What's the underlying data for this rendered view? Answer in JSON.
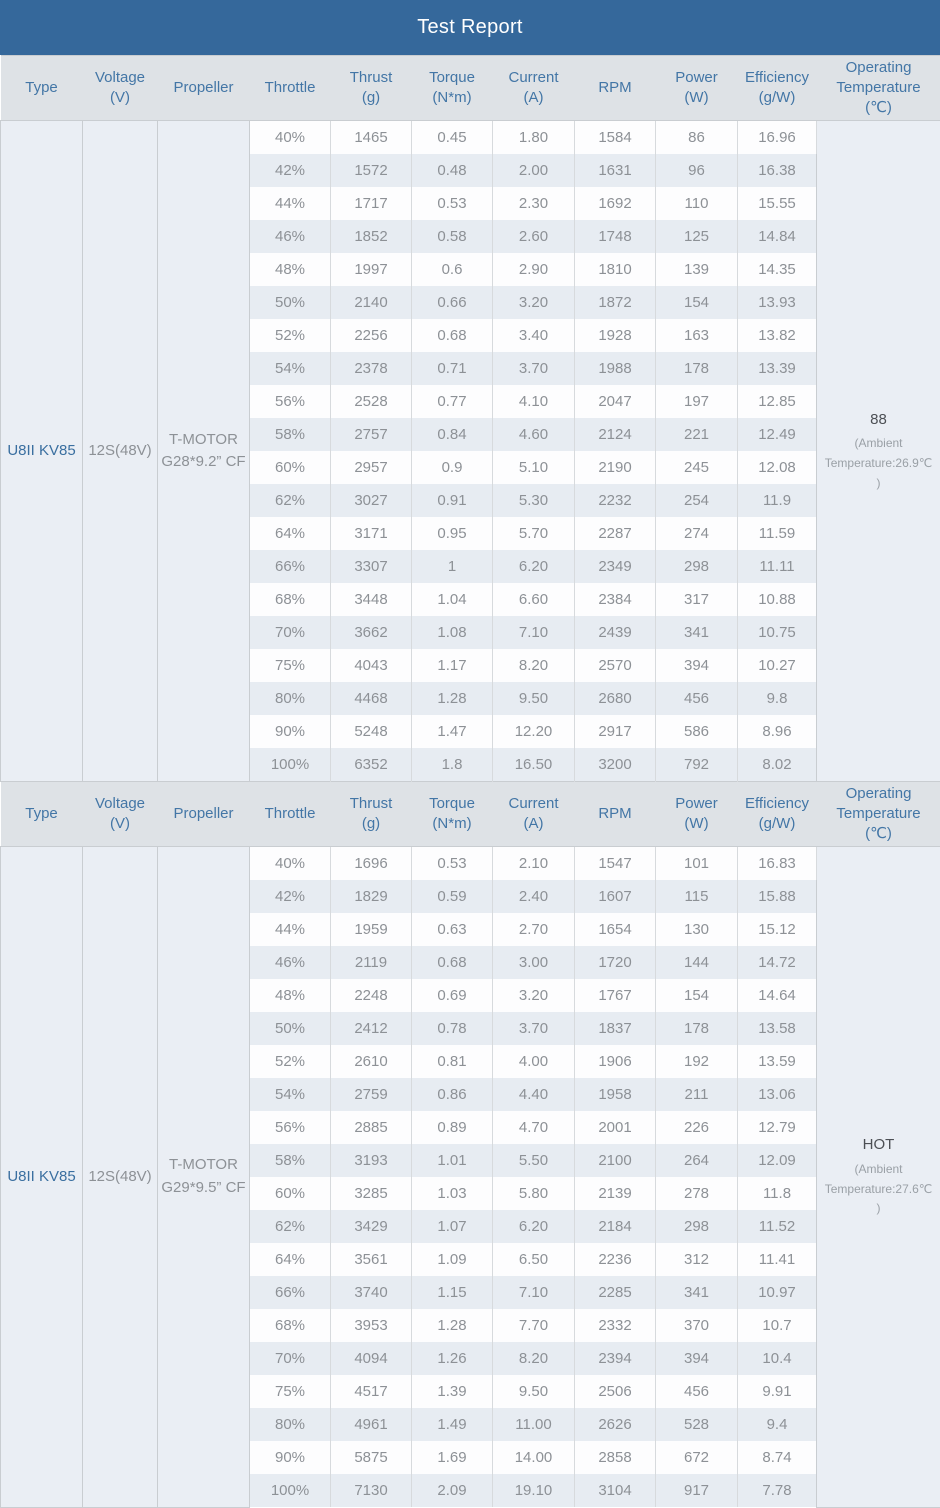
{
  "title": "Test Report",
  "columns": [
    {
      "id": "type",
      "label": "Type"
    },
    {
      "id": "voltage",
      "label": "Voltage\n(V)"
    },
    {
      "id": "propeller",
      "label": "Propeller"
    },
    {
      "id": "throttle",
      "label": "Throttle"
    },
    {
      "id": "thrust",
      "label": "Thrust\n(g)"
    },
    {
      "id": "torque",
      "label": "Torque\n(N*m)"
    },
    {
      "id": "current",
      "label": "Current\n(A)"
    },
    {
      "id": "rpm",
      "label": "RPM"
    },
    {
      "id": "power",
      "label": "Power\n(W)"
    },
    {
      "id": "efficiency",
      "label": "Efficiency\n(g/W)"
    },
    {
      "id": "operating-temperature",
      "label": "Operating\nTemperature\n(℃)"
    }
  ],
  "sections": [
    {
      "type": "U8II KV85",
      "voltage": "12S(48V)",
      "propeller": "T-MOTOR\nG28*9.2” CF",
      "temperature": {
        "value": "88",
        "note": "(Ambient\nTemperature:26.9℃\n)"
      },
      "rows": [
        [
          "40%",
          "1465",
          "0.45",
          "1.80",
          "1584",
          "86",
          "16.96"
        ],
        [
          "42%",
          "1572",
          "0.48",
          "2.00",
          "1631",
          "96",
          "16.38"
        ],
        [
          "44%",
          "1717",
          "0.53",
          "2.30",
          "1692",
          "110",
          "15.55"
        ],
        [
          "46%",
          "1852",
          "0.58",
          "2.60",
          "1748",
          "125",
          "14.84"
        ],
        [
          "48%",
          "1997",
          "0.6",
          "2.90",
          "1810",
          "139",
          "14.35"
        ],
        [
          "50%",
          "2140",
          "0.66",
          "3.20",
          "1872",
          "154",
          "13.93"
        ],
        [
          "52%",
          "2256",
          "0.68",
          "3.40",
          "1928",
          "163",
          "13.82"
        ],
        [
          "54%",
          "2378",
          "0.71",
          "3.70",
          "1988",
          "178",
          "13.39"
        ],
        [
          "56%",
          "2528",
          "0.77",
          "4.10",
          "2047",
          "197",
          "12.85"
        ],
        [
          "58%",
          "2757",
          "0.84",
          "4.60",
          "2124",
          "221",
          "12.49"
        ],
        [
          "60%",
          "2957",
          "0.9",
          "5.10",
          "2190",
          "245",
          "12.08"
        ],
        [
          "62%",
          "3027",
          "0.91",
          "5.30",
          "2232",
          "254",
          "11.9"
        ],
        [
          "64%",
          "3171",
          "0.95",
          "5.70",
          "2287",
          "274",
          "11.59"
        ],
        [
          "66%",
          "3307",
          "1",
          "6.20",
          "2349",
          "298",
          "11.11"
        ],
        [
          "68%",
          "3448",
          "1.04",
          "6.60",
          "2384",
          "317",
          "10.88"
        ],
        [
          "70%",
          "3662",
          "1.08",
          "7.10",
          "2439",
          "341",
          "10.75"
        ],
        [
          "75%",
          "4043",
          "1.17",
          "8.20",
          "2570",
          "394",
          "10.27"
        ],
        [
          "80%",
          "4468",
          "1.28",
          "9.50",
          "2680",
          "456",
          "9.8"
        ],
        [
          "90%",
          "5248",
          "1.47",
          "12.20",
          "2917",
          "586",
          "8.96"
        ],
        [
          "100%",
          "6352",
          "1.8",
          "16.50",
          "3200",
          "792",
          "8.02"
        ]
      ]
    },
    {
      "type": "U8II KV85",
      "voltage": "12S(48V)",
      "propeller": "T-MOTOR\nG29*9.5” CF",
      "temperature": {
        "value": "HOT",
        "note": "(Ambient\nTemperature:27.6℃\n)"
      },
      "rows": [
        [
          "40%",
          "1696",
          "0.53",
          "2.10",
          "1547",
          "101",
          "16.83"
        ],
        [
          "42%",
          "1829",
          "0.59",
          "2.40",
          "1607",
          "115",
          "15.88"
        ],
        [
          "44%",
          "1959",
          "0.63",
          "2.70",
          "1654",
          "130",
          "15.12"
        ],
        [
          "46%",
          "2119",
          "0.68",
          "3.00",
          "1720",
          "144",
          "14.72"
        ],
        [
          "48%",
          "2248",
          "0.69",
          "3.20",
          "1767",
          "154",
          "14.64"
        ],
        [
          "50%",
          "2412",
          "0.78",
          "3.70",
          "1837",
          "178",
          "13.58"
        ],
        [
          "52%",
          "2610",
          "0.81",
          "4.00",
          "1906",
          "192",
          "13.59"
        ],
        [
          "54%",
          "2759",
          "0.86",
          "4.40",
          "1958",
          "211",
          "13.06"
        ],
        [
          "56%",
          "2885",
          "0.89",
          "4.70",
          "2001",
          "226",
          "12.79"
        ],
        [
          "58%",
          "3193",
          "1.01",
          "5.50",
          "2100",
          "264",
          "12.09"
        ],
        [
          "60%",
          "3285",
          "1.03",
          "5.80",
          "2139",
          "278",
          "11.8"
        ],
        [
          "62%",
          "3429",
          "1.07",
          "6.20",
          "2184",
          "298",
          "11.52"
        ],
        [
          "64%",
          "3561",
          "1.09",
          "6.50",
          "2236",
          "312",
          "11.41"
        ],
        [
          "66%",
          "3740",
          "1.15",
          "7.10",
          "2285",
          "341",
          "10.97"
        ],
        [
          "68%",
          "3953",
          "1.28",
          "7.70",
          "2332",
          "370",
          "10.7"
        ],
        [
          "70%",
          "4094",
          "1.26",
          "8.20",
          "2394",
          "394",
          "10.4"
        ],
        [
          "75%",
          "4517",
          "1.39",
          "9.50",
          "2506",
          "456",
          "9.91"
        ],
        [
          "80%",
          "4961",
          "1.49",
          "11.00",
          "2626",
          "528",
          "9.4"
        ],
        [
          "90%",
          "5875",
          "1.69",
          "14.00",
          "2858",
          "672",
          "8.74"
        ],
        [
          "100%",
          "7130",
          "2.09",
          "19.10",
          "3104",
          "917",
          "7.78"
        ]
      ]
    }
  ],
  "colors": {
    "title_bg": "#35689b",
    "header_bg": "#dee2e6",
    "header_text": "#4376a6",
    "row_stripe": "#e7ecf2",
    "merged_cell_bg": "#eaeef4",
    "body_text": "#8d9196",
    "type_text": "#3a6fa0"
  }
}
